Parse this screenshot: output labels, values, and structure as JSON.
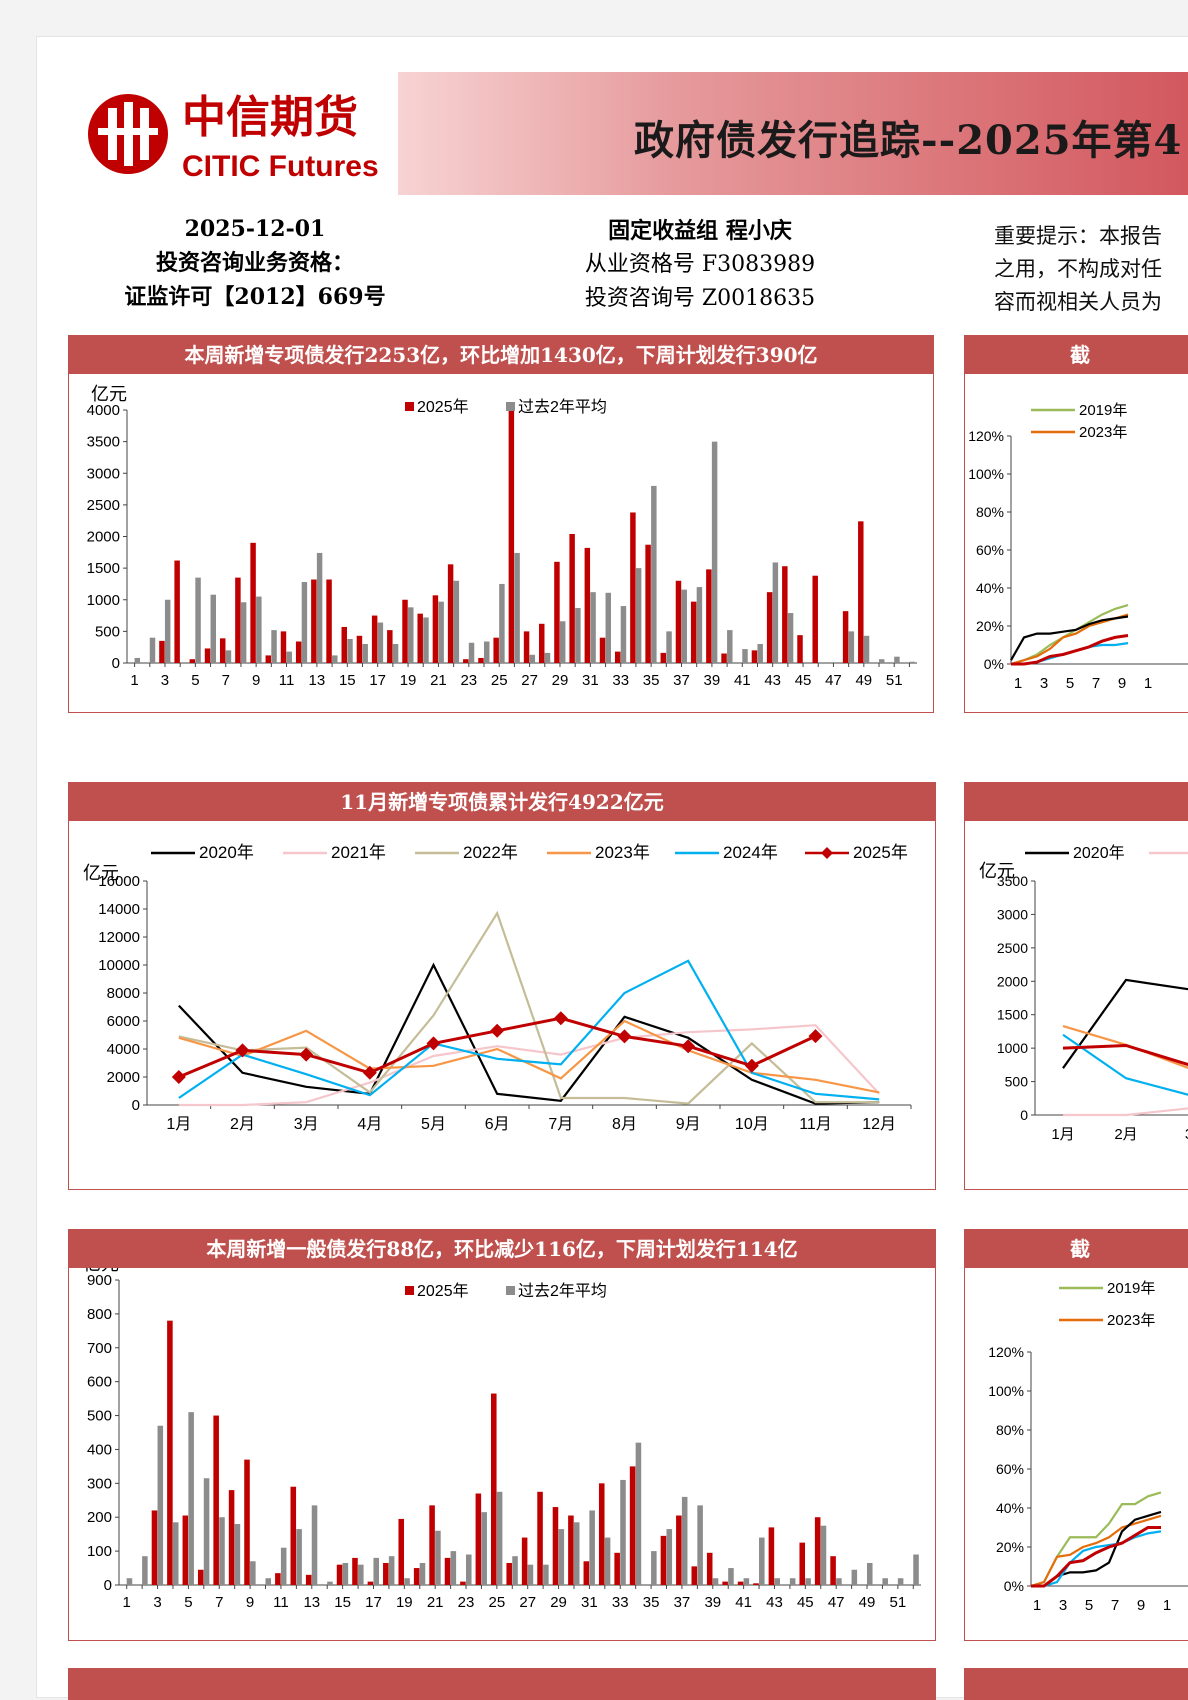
{
  "header": {
    "company_cn": "中信期货",
    "company_en": "CITIC Futures",
    "report_title": "政府债发行追踪--2025年第4",
    "date": "2025-12-01",
    "qualification_label": "投资咨询业务资格：",
    "license": "证监许可【2012】669号",
    "group_author": "固定收益组 程小庆",
    "practice_no": "从业资格号 F3083989",
    "consult_no": "投资咨询号 Z0018635",
    "notice_lines": [
      "重要提示：本报告",
      "之用，不构成对任",
      "容而视相关人员为"
    ],
    "brand_red": "#c0504d"
  },
  "panels": {
    "p1_title": "本周新增专项债发行2253亿，环比增加1430亿，下周计划发行390亿",
    "p2_title": "截",
    "p3_title": "11月新增专项债累计发行4922亿元",
    "p4_title": "",
    "p5_title": "本周新增一般债发行88亿，环比减少116亿，下周计划发行114亿",
    "p6_title": "截"
  },
  "chart_data": [
    {
      "id": "special-bond-weekly",
      "type": "bar",
      "ylabel": "亿元",
      "ylim": [
        0,
        4000
      ],
      "yticks": [
        0,
        500,
        1000,
        1500,
        2000,
        2500,
        3000,
        3500,
        4000
      ],
      "x_tick_labels": [
        "1",
        "3",
        "5",
        "7",
        "9",
        "11",
        "13",
        "15",
        "17",
        "19",
        "21",
        "23",
        "25",
        "27",
        "29",
        "31",
        "33",
        "35",
        "37",
        "39",
        "41",
        "43",
        "45",
        "47",
        "49",
        "51"
      ],
      "categories": [
        1,
        2,
        3,
        4,
        5,
        6,
        7,
        8,
        9,
        10,
        11,
        12,
        13,
        14,
        15,
        16,
        17,
        18,
        19,
        20,
        21,
        22,
        23,
        24,
        25,
        26,
        27,
        28,
        29,
        30,
        31,
        32,
        33,
        34,
        35,
        36,
        37,
        38,
        39,
        40,
        41,
        42,
        43,
        44,
        45,
        46,
        47,
        48,
        49,
        50,
        51,
        52
      ],
      "series": [
        {
          "name": "2025年",
          "color": "#c00000",
          "values": [
            0,
            0,
            350,
            1620,
            60,
            230,
            390,
            1350,
            1900,
            120,
            500,
            340,
            1320,
            1320,
            570,
            430,
            750,
            520,
            1000,
            780,
            1070,
            1560,
            60,
            80,
            400,
            3990,
            500,
            620,
            1600,
            2040,
            1820,
            400,
            180,
            2380,
            1870,
            160,
            1300,
            970,
            1480,
            150,
            0,
            200,
            1120,
            1530,
            440,
            1380,
            0,
            820,
            2240,
            0,
            0,
            0
          ]
        },
        {
          "name": "过去2年平均",
          "color": "#8c8c8c",
          "values": [
            80,
            400,
            1000,
            0,
            1350,
            1080,
            200,
            960,
            1050,
            520,
            180,
            1280,
            1740,
            120,
            380,
            300,
            640,
            300,
            880,
            720,
            970,
            1300,
            320,
            340,
            1250,
            1740,
            130,
            160,
            660,
            870,
            1120,
            1110,
            900,
            1500,
            2800,
            500,
            1160,
            1200,
            3500,
            520,
            220,
            300,
            1590,
            790,
            0,
            0,
            0,
            500,
            430,
            60,
            100,
            20
          ]
        }
      ]
    },
    {
      "id": "special-bond-cumulative-ratio",
      "type": "line",
      "ylim": [
        0,
        1.2
      ],
      "yticks": [
        "0%",
        "20%",
        "40%",
        "60%",
        "80%",
        "100%",
        "120%"
      ],
      "x_tick_labels": [
        "1",
        "3",
        "5",
        "7",
        "9",
        "1"
      ],
      "series": [
        {
          "name": "2019年",
          "color": "#9bbb59",
          "values": [
            0,
            0.02,
            0.05,
            0.1,
            0.14,
            0.18,
            0.22,
            0.26,
            0.29,
            0.31
          ]
        },
        {
          "name": "2023年",
          "color": "#e46c0a",
          "values": [
            0,
            0.02,
            0.04,
            0.08,
            0.14,
            0.16,
            0.2,
            0.22,
            0.24,
            0.26
          ]
        },
        {
          "name": "",
          "color": "#000000",
          "values": [
            0.02,
            0.14,
            0.16,
            0.16,
            0.17,
            0.18,
            0.21,
            0.23,
            0.24,
            0.25
          ]
        },
        {
          "name": "",
          "color": "#00b0f0",
          "values": [
            0,
            0,
            0.01,
            0.03,
            0.05,
            0.07,
            0.09,
            0.1,
            0.1,
            0.11
          ]
        },
        {
          "name": "",
          "color": "#c00000",
          "values": [
            0,
            0,
            0.01,
            0.04,
            0.05,
            0.07,
            0.09,
            0.12,
            0.14,
            0.15
          ]
        }
      ]
    },
    {
      "id": "special-bond-monthly",
      "type": "line",
      "ylabel": "亿元",
      "ylim": [
        0,
        16000
      ],
      "yticks": [
        0,
        2000,
        4000,
        6000,
        8000,
        10000,
        12000,
        14000,
        16000
      ],
      "categories": [
        "1月",
        "2月",
        "3月",
        "4月",
        "5月",
        "6月",
        "7月",
        "8月",
        "9月",
        "10月",
        "11月",
        "12月"
      ],
      "series": [
        {
          "name": "2020年",
          "color": "#000000",
          "values": [
            7100,
            2300,
            1300,
            800,
            10000,
            800,
            300,
            6300,
            4800,
            1800,
            100,
            200
          ]
        },
        {
          "name": "2021年",
          "color": "#f5c6cb",
          "values": [
            0,
            0,
            200,
            1600,
            3500,
            4200,
            3600,
            4800,
            5200,
            5400,
            5700,
            800
          ]
        },
        {
          "name": "2022年",
          "color": "#c4bd97",
          "values": [
            4900,
            3900,
            4100,
            900,
            6400,
            13700,
            500,
            500,
            100,
            4400,
            200,
            200
          ]
        },
        {
          "name": "2023年",
          "color": "#f79646",
          "values": [
            4800,
            3500,
            5300,
            2600,
            2800,
            4000,
            1900,
            6000,
            3900,
            2300,
            1800,
            900
          ]
        },
        {
          "name": "2024年",
          "color": "#00b0f0",
          "values": [
            500,
            3600,
            2200,
            700,
            4400,
            3300,
            2900,
            8000,
            10300,
            2300,
            800,
            400
          ]
        },
        {
          "name": "2025年",
          "color": "#c00000",
          "values": [
            2000,
            3900,
            3600,
            2300,
            4400,
            5300,
            6200,
            4900,
            4200,
            2800,
            4922,
            null
          ]
        }
      ]
    },
    {
      "id": "panel4-line",
      "type": "line",
      "ylabel": "亿元",
      "ylim": [
        0,
        3500
      ],
      "yticks": [
        0,
        500,
        1000,
        1500,
        2000,
        2500,
        3000,
        3500
      ],
      "x_tick_labels": [
        "1月",
        "2月",
        "3"
      ],
      "series": [
        {
          "name": "2020年",
          "color": "#000000",
          "values": [
            700,
            2020,
            1880
          ]
        },
        {
          "name": "",
          "color": "#f5c6cb",
          "values": [
            0,
            0,
            100
          ]
        },
        {
          "name": "",
          "color": "#f79646",
          "values": [
            1330,
            1050,
            700
          ]
        },
        {
          "name": "",
          "color": "#00b0f0",
          "values": [
            1200,
            550,
            300
          ]
        },
        {
          "name": "",
          "color": "#c00000",
          "values": [
            1000,
            1040,
            750
          ]
        }
      ]
    },
    {
      "id": "general-bond-weekly",
      "type": "bar",
      "ylabel": "亿元",
      "ylim": [
        0,
        900
      ],
      "yticks": [
        0,
        100,
        200,
        300,
        400,
        500,
        600,
        700,
        800,
        900
      ],
      "x_tick_labels": [
        "1",
        "3",
        "5",
        "7",
        "9",
        "11",
        "13",
        "15",
        "17",
        "19",
        "21",
        "23",
        "25",
        "27",
        "29",
        "31",
        "33",
        "35",
        "37",
        "39",
        "41",
        "43",
        "45",
        "47",
        "49",
        "51"
      ],
      "categories": [
        1,
        2,
        3,
        4,
        5,
        6,
        7,
        8,
        9,
        10,
        11,
        12,
        13,
        14,
        15,
        16,
        17,
        18,
        19,
        20,
        21,
        22,
        23,
        24,
        25,
        26,
        27,
        28,
        29,
        30,
        31,
        32,
        33,
        34,
        35,
        36,
        37,
        38,
        39,
        40,
        41,
        42,
        43,
        44,
        45,
        46,
        47,
        48,
        49,
        50,
        51,
        52
      ],
      "series": [
        {
          "name": "2025年",
          "color": "#c00000",
          "values": [
            0,
            0,
            220,
            780,
            205,
            45,
            500,
            280,
            370,
            0,
            35,
            290,
            30,
            0,
            60,
            80,
            10,
            65,
            195,
            50,
            235,
            80,
            10,
            270,
            565,
            65,
            140,
            275,
            230,
            205,
            70,
            300,
            95,
            350,
            0,
            145,
            205,
            55,
            95,
            10,
            10,
            5,
            170,
            0,
            125,
            200,
            85,
            0,
            0,
            0,
            0,
            0
          ]
        },
        {
          "name": "过去2年平均",
          "color": "#8c8c8c",
          "values": [
            20,
            85,
            470,
            185,
            510,
            315,
            200,
            180,
            70,
            20,
            110,
            165,
            235,
            10,
            65,
            60,
            80,
            85,
            20,
            65,
            160,
            100,
            90,
            215,
            275,
            85,
            60,
            60,
            165,
            185,
            220,
            140,
            310,
            420,
            100,
            165,
            260,
            235,
            20,
            50,
            20,
            140,
            20,
            20,
            20,
            175,
            20,
            45,
            65,
            20,
            20,
            90
          ]
        }
      ]
    },
    {
      "id": "general-bond-cumulative-ratio",
      "type": "line",
      "ylim": [
        0,
        1.2
      ],
      "yticks": [
        "0%",
        "20%",
        "40%",
        "60%",
        "80%",
        "100%",
        "120%"
      ],
      "x_tick_labels": [
        "1",
        "3",
        "5",
        "7",
        "9",
        "1"
      ],
      "series": [
        {
          "name": "2019年",
          "color": "#9bbb59",
          "values": [
            0,
            0.02,
            0.15,
            0.25,
            0.25,
            0.25,
            0.32,
            0.42,
            0.42,
            0.46,
            0.48
          ]
        },
        {
          "name": "2023年",
          "color": "#e46c0a",
          "values": [
            0,
            0.02,
            0.15,
            0.16,
            0.2,
            0.22,
            0.25,
            0.3,
            0.32,
            0.34,
            0.36
          ]
        },
        {
          "name": "",
          "color": "#000000",
          "values": [
            0,
            0,
            0.05,
            0.07,
            0.07,
            0.08,
            0.12,
            0.28,
            0.34,
            0.36,
            0.38
          ]
        },
        {
          "name": "",
          "color": "#00b0f0",
          "values": [
            0,
            0,
            0.02,
            0.12,
            0.18,
            0.2,
            0.21,
            0.22,
            0.25,
            0.27,
            0.28
          ]
        },
        {
          "name": "",
          "color": "#c00000",
          "values": [
            0,
            0,
            0.05,
            0.12,
            0.13,
            0.17,
            0.2,
            0.22,
            0.26,
            0.3,
            0.3
          ]
        }
      ]
    }
  ]
}
